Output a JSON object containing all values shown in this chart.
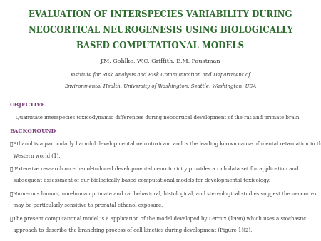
{
  "title_line1": "EVALUATION OF INTERSPECIES VARIABILITY DURING",
  "title_line2": "NEOCORTICAL NEUROGENESIS USING BIOLOGICALLY",
  "title_line3": "BASED COMPUTATIONAL MODELS",
  "title_color": "#2e6b2e",
  "author": "J.M. Gohlke, W.C. Griffith, E.M. Faustman",
  "affiliation1": "Institute for Risk Analysis and Risk Communication and Department of",
  "affiliation2": "Environmental Health, University of Washington, Seattle, Washington, USA",
  "section_color": "#7b3f7b",
  "body_color": "#3a3a3a",
  "background_color": "#ffffff",
  "objective_header": "OBJECTIVE",
  "objective_text": "Quantitate interspecies toxicodynamic differences during neocortical development of the rat and primate brain.",
  "background_header": "BACKGROUND",
  "bullet1_a": "❖Ethanol is a particularly harmful developmental neurotoxicant and is the leading known cause of mental retardation in the",
  "bullet1_b": "  Western world (1).",
  "bullet2_a": "❖ Extensive research on ethanol-induced developmental neurotoxicity provides a rich data set for application and",
  "bullet2_b": "  subsequent assessment of our biologically based computational models for developmental toxicology.",
  "bullet3_a": "❖Numerous human, non-human primate and rat behavioral, histological, and stereological studies suggest the neocortex",
  "bullet3_b": "  may be particularly sensitive to prenatal ethanol exposure.",
  "bullet4_a": "❖The present computational model is a application of the model developed by Leroux (1996) which uses a stochastic",
  "bullet4_b": "  approach to describe the branching process of cell kinetics during development (Figure 1)(2)."
}
